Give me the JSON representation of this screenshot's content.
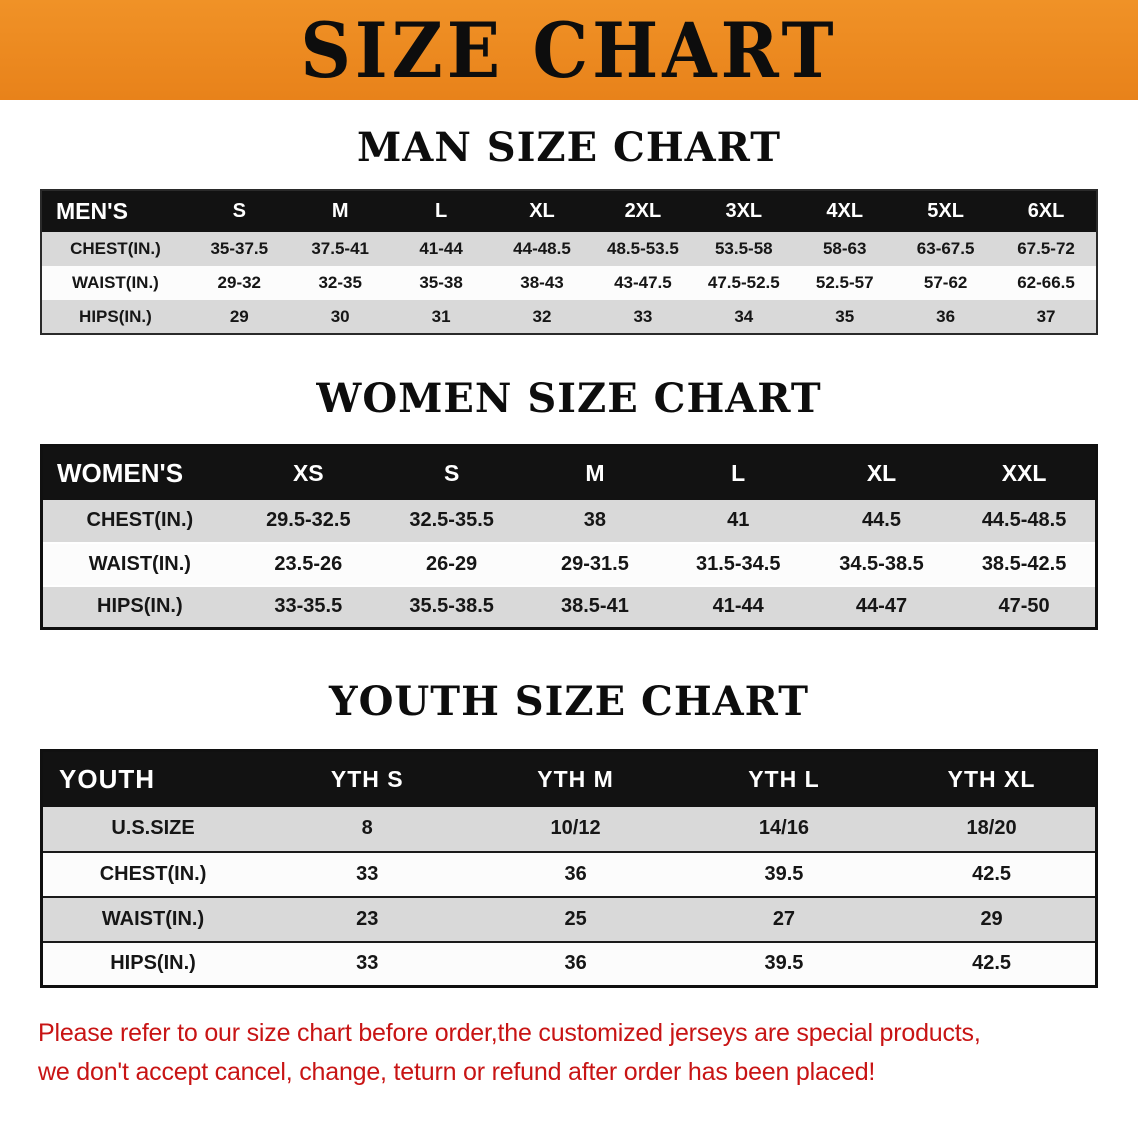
{
  "banner": {
    "title": "SIZE CHART"
  },
  "colors": {
    "banner_orange": "#ED8A1F",
    "table_header_bg": "#121212",
    "row_gray": "#D9D9D9",
    "row_white": "#FCFCFC",
    "footer_red": "#C81414"
  },
  "sections": {
    "men": {
      "title": "MAN SIZE CHART"
    },
    "women": {
      "title": "WOMEN SIZE CHART"
    },
    "youth": {
      "title": "YOUTH SIZE CHART"
    }
  },
  "tables": {
    "men": {
      "header": [
        "MEN'S",
        "S",
        "M",
        "L",
        "XL",
        "2XL",
        "3XL",
        "4XL",
        "5XL",
        "6XL"
      ],
      "rows": [
        {
          "label": "CHEST(IN.)",
          "values": [
            "35-37.5",
            "37.5-41",
            "41-44",
            "44-48.5",
            "48.5-53.5",
            "53.5-58",
            "58-63",
            "63-67.5",
            "67.5-72"
          ]
        },
        {
          "label": "WAIST(IN.)",
          "values": [
            "29-32",
            "32-35",
            "35-38",
            "38-43",
            "43-47.5",
            "47.5-52.5",
            "52.5-57",
            "57-62",
            "62-66.5"
          ]
        },
        {
          "label": "HIPS(IN.)",
          "values": [
            "29",
            "30",
            "31",
            "32",
            "33",
            "34",
            "35",
            "36",
            "37"
          ]
        }
      ]
    },
    "women": {
      "header": [
        "WOMEN'S",
        "XS",
        "S",
        "M",
        "L",
        "XL",
        "XXL"
      ],
      "rows": [
        {
          "label": "CHEST(IN.)",
          "values": [
            "29.5-32.5",
            "32.5-35.5",
            "38",
            "41",
            "44.5",
            "44.5-48.5"
          ]
        },
        {
          "label": "WAIST(IN.)",
          "values": [
            "23.5-26",
            "26-29",
            "29-31.5",
            "31.5-34.5",
            "34.5-38.5",
            "38.5-42.5"
          ]
        },
        {
          "label": "HIPS(IN.)",
          "values": [
            "33-35.5",
            "35.5-38.5",
            "38.5-41",
            "41-44",
            "44-47",
            "47-50"
          ]
        }
      ]
    },
    "youth": {
      "header": [
        "YOUTH",
        "YTH S",
        "YTH M",
        "YTH L",
        "YTH XL"
      ],
      "rows": [
        {
          "label": "U.S.SIZE",
          "values": [
            "8",
            "10/12",
            "14/16",
            "18/20"
          ]
        },
        {
          "label": "CHEST(IN.)",
          "values": [
            "33",
            "36",
            "39.5",
            "42.5"
          ]
        },
        {
          "label": "WAIST(IN.)",
          "values": [
            "23",
            "25",
            "27",
            "29"
          ]
        },
        {
          "label": "HIPS(IN.)",
          "values": [
            "33",
            "36",
            "39.5",
            "42.5"
          ]
        }
      ]
    }
  },
  "footer": {
    "line1": "Please refer to our size chart before order,the customized jerseys are special products,",
    "line2": "we don't accept cancel, change, teturn or refund after order has been placed!"
  }
}
